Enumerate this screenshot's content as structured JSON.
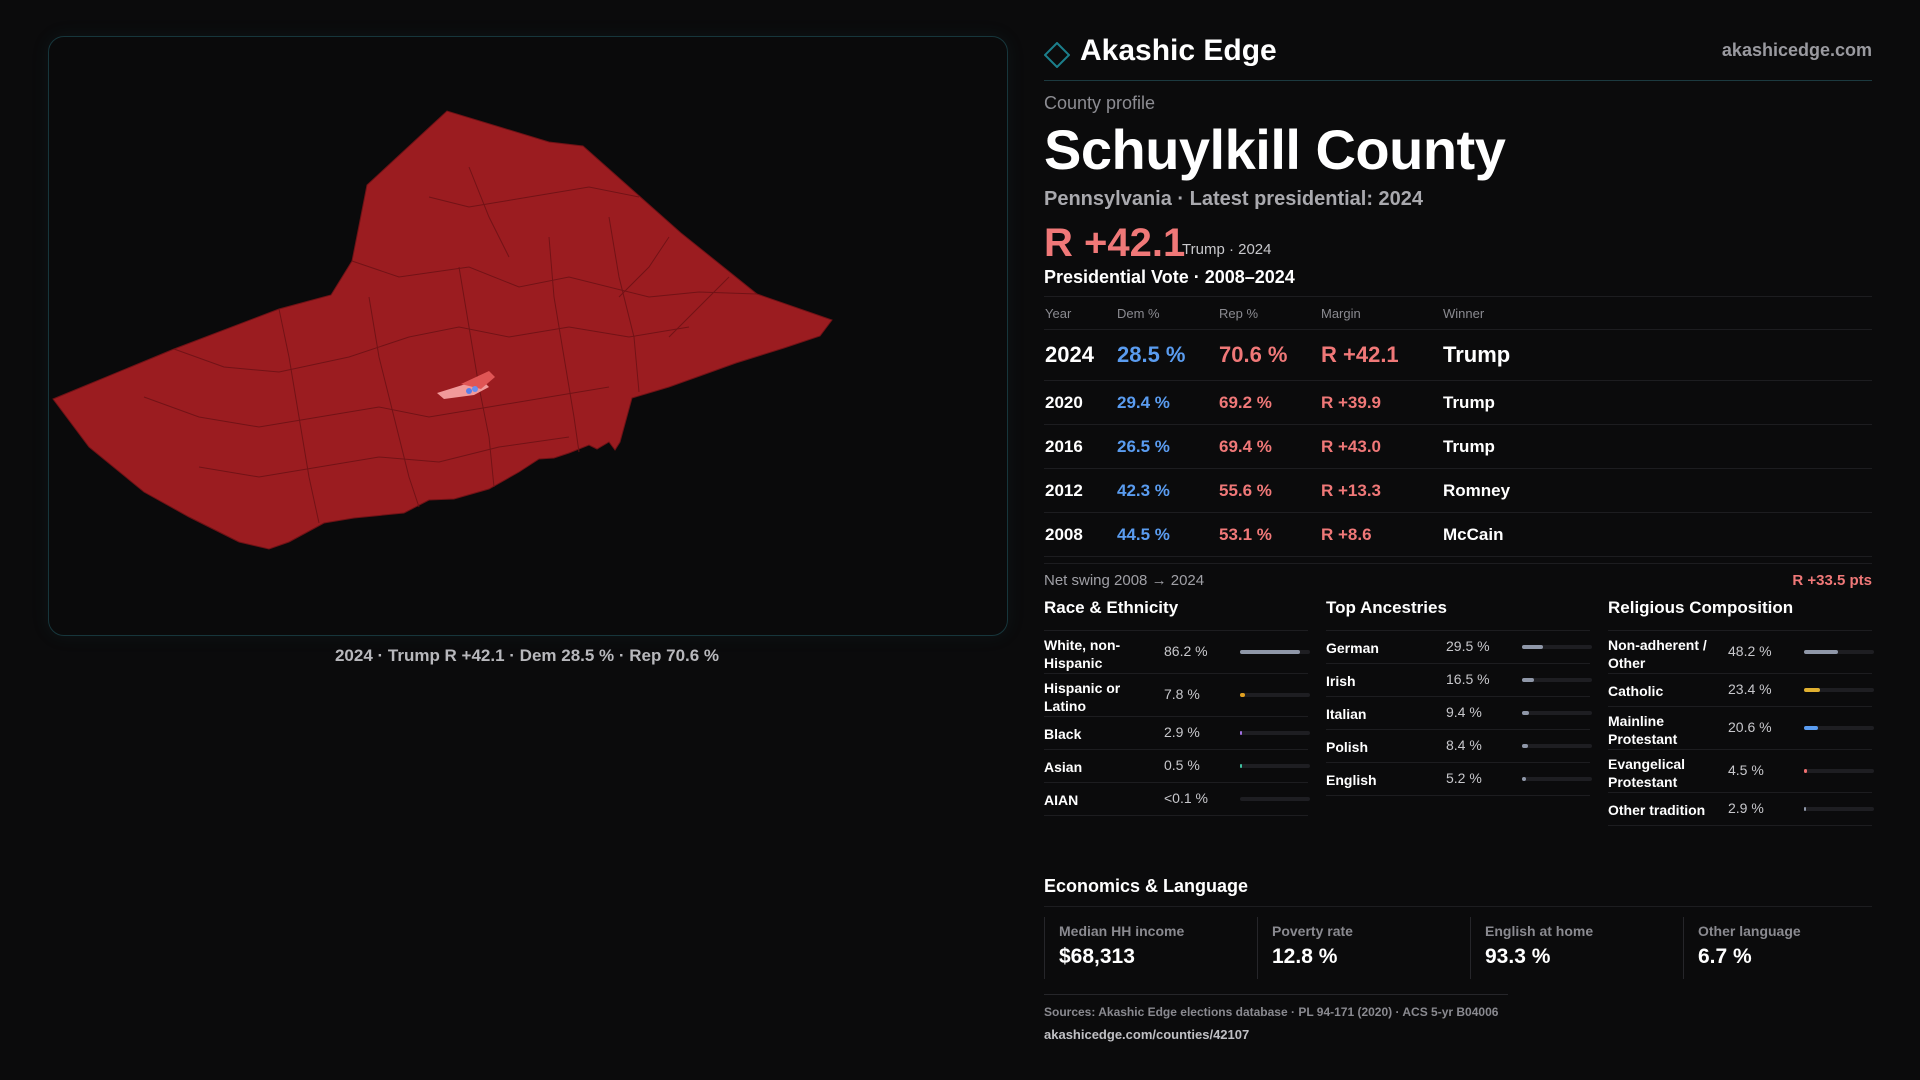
{
  "map_caption": "2024 · Trump R +42.1 · Dem 28.5 % · Rep 70.6 %",
  "brand": {
    "name": "Akashic Edge",
    "url": "akashicedge.com"
  },
  "colors": {
    "rep": "#f07878",
    "dem": "#5a9cf0",
    "map_fill": "#9b1c20",
    "accent": "#1c5a63"
  },
  "profile": {
    "kicker": "County profile",
    "county": "Schuylkill County",
    "subtitle": "Pennsylvania · Latest presidential: 2024",
    "margin": "R +42.1",
    "margin_note": "Trump · 2024"
  },
  "votes": {
    "title": "Presidential Vote · 2008–2024",
    "headers": [
      "Year",
      "Dem %",
      "Rep %",
      "Margin",
      "Winner"
    ],
    "rows": [
      {
        "year": "2024",
        "dem": "28.5 %",
        "rep": "70.6 %",
        "margin": "R +42.1",
        "winner": "Trump"
      },
      {
        "year": "2020",
        "dem": "29.4 %",
        "rep": "69.2 %",
        "margin": "R +39.9",
        "winner": "Trump"
      },
      {
        "year": "2016",
        "dem": "26.5 %",
        "rep": "69.4 %",
        "margin": "R +43.0",
        "winner": "Trump"
      },
      {
        "year": "2012",
        "dem": "42.3 %",
        "rep": "55.6 %",
        "margin": "R +13.3",
        "winner": "Romney"
      },
      {
        "year": "2008",
        "dem": "44.5 %",
        "rep": "53.1 %",
        "margin": "R +8.6",
        "winner": "McCain"
      }
    ],
    "swing_label": "Net swing 2008 → 2024",
    "swing_value": "R +33.5 pts"
  },
  "race": {
    "title": "Race & Ethnicity",
    "items": [
      {
        "label": "White, non-Hispanic",
        "pct": "86.2 %",
        "level": 0.862,
        "color": "#8f97a8"
      },
      {
        "label": "Hispanic or Latino",
        "pct": "7.8 %",
        "level": 0.078,
        "color": "#e0a020"
      },
      {
        "label": "Black",
        "pct": "2.9 %",
        "level": 0.029,
        "color": "#a070e0"
      },
      {
        "label": "Asian",
        "pct": "0.5 %",
        "level": 0.005,
        "color": "#40c0a0"
      },
      {
        "label": "AIAN",
        "pct": "<0.1 %",
        "level": 0.0,
        "color": "#8f97a8"
      }
    ]
  },
  "ancestry": {
    "title": "Top Ancestries",
    "items": [
      {
        "label": "German",
        "pct": "29.5 %",
        "level": 0.295,
        "color": "#8f97a8"
      },
      {
        "label": "Irish",
        "pct": "16.5 %",
        "level": 0.165,
        "color": "#8f97a8"
      },
      {
        "label": "Italian",
        "pct": "9.4 %",
        "level": 0.094,
        "color": "#8f97a8"
      },
      {
        "label": "Polish",
        "pct": "8.4 %",
        "level": 0.084,
        "color": "#8f97a8"
      },
      {
        "label": "English",
        "pct": "5.2 %",
        "level": 0.052,
        "color": "#8f97a8"
      }
    ]
  },
  "religion": {
    "title": "Religious Composition",
    "items": [
      {
        "label": "Non-adherent / Other",
        "pct": "48.2 %",
        "level": 0.482,
        "color": "#8f97a8"
      },
      {
        "label": "Catholic",
        "pct": "23.4 %",
        "level": 0.234,
        "color": "#e0b030"
      },
      {
        "label": "Mainline Protestant",
        "pct": "20.6 %",
        "level": 0.206,
        "color": "#5a9cf0"
      },
      {
        "label": "Evangelical Protestant",
        "pct": "4.5 %",
        "level": 0.045,
        "color": "#f07070"
      },
      {
        "label": "Other tradition",
        "pct": "2.9 %",
        "level": 0.029,
        "color": "#8f97a8"
      }
    ]
  },
  "economics": {
    "title": "Economics & Language",
    "cards": [
      {
        "label": "Median HH income",
        "value": "$68,313"
      },
      {
        "label": "Poverty rate",
        "value": "12.8 %"
      },
      {
        "label": "English at home",
        "value": "93.3 %"
      },
      {
        "label": "Other language",
        "value": "6.7 %"
      }
    ]
  },
  "sources": {
    "line1": "Sources: Akashic Edge elections database · PL 94-171 (2020) · ACS 5-yr B04006",
    "line2": "akashicedge.com/counties/42107"
  }
}
